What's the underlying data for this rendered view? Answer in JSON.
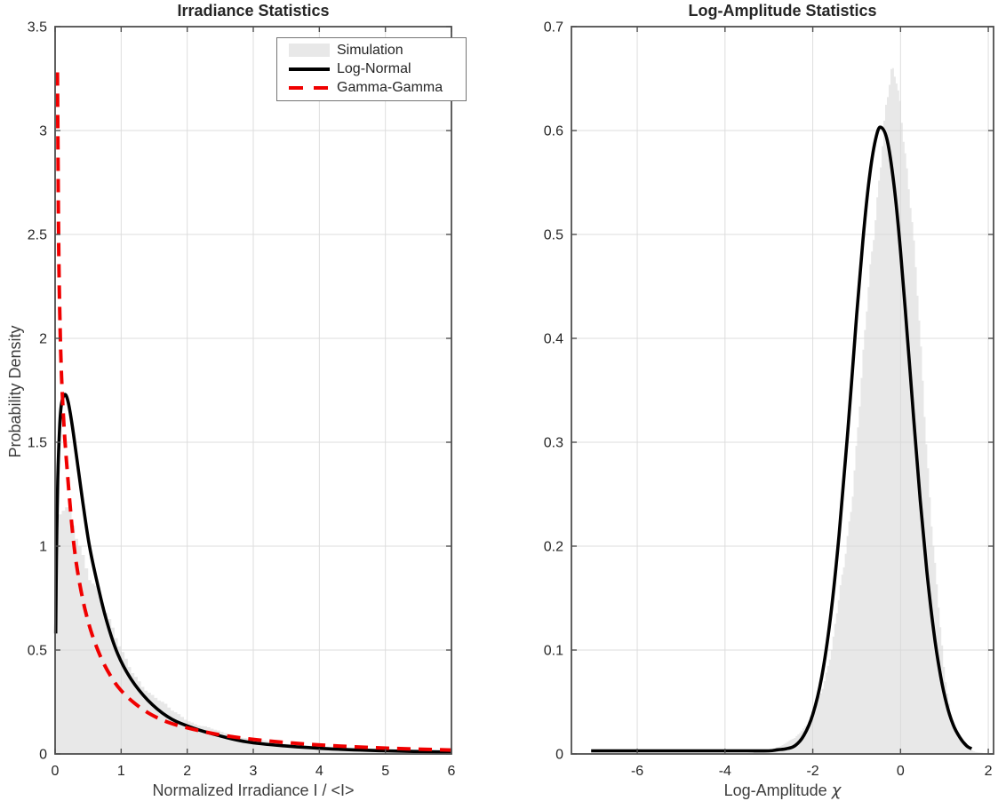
{
  "palette": {
    "background": "#ffffff",
    "axis_color": "#4f4f4f",
    "grid_color": "#d8d8d8",
    "text_color": "#262626",
    "histogram_fill": "#e8e8e8",
    "lognormal_color": "#000000",
    "gammagamma_color": "#f00000"
  },
  "chart_data": [
    {
      "type": "histogram+lines",
      "title": "Irradiance Statistics",
      "ylabel": "Probability Density",
      "xlabel_parts": {
        "text": "Normalized Irradiance I / <I>",
        "italic": ""
      },
      "xlim": [
        0,
        6
      ],
      "ylim": [
        0,
        3.5
      ],
      "xticks": [
        0,
        1,
        2,
        3,
        4,
        5,
        6
      ],
      "yticks": [
        0,
        0.5,
        1,
        1.5,
        2,
        2.5,
        3,
        3.5
      ],
      "grid": true,
      "legend": {
        "position": "north-east-inside",
        "entries": [
          {
            "label": "Simulation",
            "type": "patch",
            "color": "#e8e8e8"
          },
          {
            "label": "Log-Normal",
            "type": "line",
            "color": "#000000"
          },
          {
            "label": "Gamma-Gamma",
            "type": "dash",
            "color": "#f00000"
          }
        ]
      },
      "series": [
        {
          "name": "Simulation",
          "kind": "histogram",
          "color": "#e8e8e8",
          "bin_width": 0.05,
          "envelope_x": [
            0,
            0.05,
            0.1,
            0.16,
            0.22,
            0.3,
            0.4,
            0.52,
            0.64,
            0.82,
            1.0,
            1.2,
            1.45,
            1.75,
            2.1,
            2.5,
            3.0,
            3.6,
            4.3,
            5.1,
            6.0
          ],
          "envelope_y": [
            1.05,
            1.13,
            1.16,
            1.15,
            1.12,
            1.05,
            0.97,
            0.88,
            0.815,
            0.634,
            0.483,
            0.385,
            0.29,
            0.21,
            0.15,
            0.105,
            0.07,
            0.046,
            0.029,
            0.018,
            0.011
          ]
        },
        {
          "name": "Log-Normal",
          "kind": "line",
          "color": "#000000",
          "width": 3.6,
          "dash": null,
          "x": [
            0.01,
            0.02,
            0.04,
            0.07,
            0.1,
            0.15,
            0.2,
            0.26,
            0.33,
            0.42,
            0.52,
            0.64,
            0.78,
            0.95,
            1.15,
            1.4,
            1.7,
            2.0,
            2.4,
            2.9,
            3.5,
            4.2,
            5.0,
            6.0
          ],
          "y": [
            0.58,
            0.95,
            1.32,
            1.58,
            1.69,
            1.73,
            1.69,
            1.58,
            1.42,
            1.21,
            1.0,
            0.82,
            0.64,
            0.48,
            0.36,
            0.26,
            0.18,
            0.135,
            0.095,
            0.058,
            0.038,
            0.024,
            0.015,
            0.009
          ]
        },
        {
          "name": "Gamma-Gamma",
          "kind": "line",
          "color": "#f00000",
          "width": 4,
          "dash": [
            15,
            9
          ],
          "x": [
            0.035,
            0.04,
            0.05,
            0.06,
            0.08,
            0.1,
            0.13,
            0.17,
            0.22,
            0.28,
            0.35,
            0.45,
            0.56,
            0.7,
            0.85,
            1.0,
            1.2,
            1.45,
            1.75,
            2.1,
            2.5,
            3.0,
            3.6,
            4.3,
            5.1,
            6.0
          ],
          "y": [
            3.28,
            3.05,
            2.6,
            2.3,
            2.0,
            1.8,
            1.6,
            1.42,
            1.22,
            1.02,
            0.86,
            0.7,
            0.575,
            0.46,
            0.37,
            0.305,
            0.245,
            0.19,
            0.148,
            0.118,
            0.092,
            0.07,
            0.052,
            0.038,
            0.027,
            0.019
          ]
        }
      ]
    },
    {
      "type": "histogram+lines",
      "title": "Log-Amplitude Statistics",
      "ylabel": "",
      "xlabel_parts": {
        "text": "Log-Amplitude ",
        "italic": "χ"
      },
      "xlim": [
        -7.5,
        2.12
      ],
      "ylim": [
        0,
        0.7
      ],
      "xticks": [
        -6,
        -4,
        -2,
        0,
        2
      ],
      "yticks": [
        0,
        0.1,
        0.2,
        0.3,
        0.4,
        0.5,
        0.6,
        0.7
      ],
      "grid": true,
      "legend": null,
      "series": [
        {
          "name": "Simulation",
          "kind": "histogram",
          "color": "#e8e8e8",
          "bin_width": 0.04,
          "envelope_x": [
            -3.35,
            -3.0,
            -2.7,
            -2.4,
            -2.1,
            -1.8,
            -1.55,
            -1.3,
            -1.1,
            -0.9,
            -0.7,
            -0.5,
            -0.35,
            -0.2,
            -0.1,
            0,
            0.1,
            0.25,
            0.4,
            0.55,
            0.7,
            0.85,
            1.0,
            1.15,
            1.3,
            1.5,
            1.7,
            1.88
          ],
          "envelope_y": [
            0.002,
            0.004,
            0.008,
            0.016,
            0.03,
            0.06,
            0.105,
            0.175,
            0.255,
            0.35,
            0.46,
            0.555,
            0.615,
            0.65,
            0.648,
            0.628,
            0.59,
            0.52,
            0.43,
            0.33,
            0.235,
            0.15,
            0.075,
            0.038,
            0.018,
            0.006,
            0.002,
            0.001
          ]
        },
        {
          "name": "Log-Normal",
          "kind": "line",
          "color": "#000000",
          "width": 3.6,
          "dash": null,
          "x": [
            -7.05,
            -6.0,
            -5.0,
            -4.0,
            -3.5,
            -3.0,
            -2.8,
            -2.6,
            -2.4,
            -2.2,
            -2.0,
            -1.8,
            -1.6,
            -1.4,
            -1.2,
            -1.0,
            -0.85,
            -0.7,
            -0.55,
            -0.44,
            -0.3,
            -0.15,
            0,
            0.15,
            0.3,
            0.45,
            0.6,
            0.75,
            0.9,
            1.05,
            1.2,
            1.35,
            1.5,
            1.62
          ],
          "y": [
            0.003,
            0.003,
            0.003,
            0.003,
            0.003,
            0.003,
            0.004,
            0.005,
            0.008,
            0.018,
            0.038,
            0.073,
            0.13,
            0.211,
            0.312,
            0.422,
            0.498,
            0.558,
            0.595,
            0.603,
            0.59,
            0.548,
            0.484,
            0.405,
            0.323,
            0.244,
            0.176,
            0.12,
            0.078,
            0.048,
            0.028,
            0.016,
            0.008,
            0.005
          ]
        }
      ]
    }
  ]
}
